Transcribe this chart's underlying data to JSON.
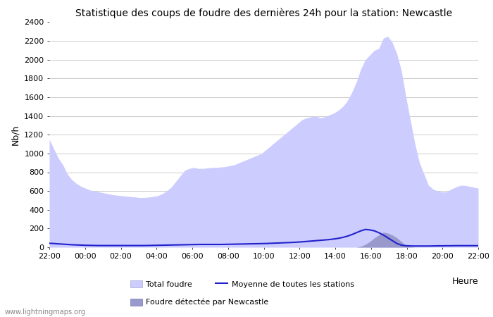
{
  "title": "Statistique des coups de foudre des dernières 24h pour la station: Newcastle",
  "xlabel": "Heure",
  "ylabel": "Nb/h",
  "ylim": [
    0,
    2400
  ],
  "yticks": [
    0,
    200,
    400,
    600,
    800,
    1000,
    1200,
    1400,
    1600,
    1800,
    2000,
    2200,
    2400
  ],
  "xtick_labels": [
    "22:00",
    "00:00",
    "02:00",
    "04:00",
    "06:00",
    "08:00",
    "10:00",
    "12:00",
    "14:00",
    "16:00",
    "18:00",
    "20:00",
    "22:00"
  ],
  "bg_color": "#ffffff",
  "grid_color": "#cccccc",
  "fill_total_color": "#ccccff",
  "fill_newcastle_color": "#9999cc",
  "mean_line_color": "#2222cc",
  "watermark": "www.lightningmaps.org",
  "total_foudre": [
    1150,
    1050,
    950,
    880,
    780,
    720,
    680,
    650,
    630,
    610,
    600,
    590,
    580,
    570,
    560,
    555,
    550,
    545,
    540,
    535,
    530,
    530,
    535,
    540,
    550,
    570,
    600,
    640,
    700,
    760,
    820,
    840,
    850,
    840,
    840,
    845,
    850,
    850,
    855,
    860,
    870,
    880,
    900,
    920,
    940,
    960,
    980,
    1000,
    1040,
    1080,
    1120,
    1160,
    1200,
    1240,
    1280,
    1320,
    1360,
    1380,
    1390,
    1400,
    1380,
    1390,
    1410,
    1430,
    1460,
    1500,
    1560,
    1650,
    1760,
    1900,
    2000,
    2050,
    2100,
    2120,
    2230,
    2250,
    2180,
    2060,
    1880,
    1600,
    1350,
    1100,
    900,
    780,
    660,
    620,
    600,
    590,
    590,
    620,
    640,
    660,
    660,
    650,
    640,
    630
  ],
  "newcastle": [
    0,
    0,
    0,
    0,
    0,
    0,
    0,
    0,
    0,
    0,
    0,
    0,
    0,
    0,
    0,
    0,
    0,
    0,
    0,
    0,
    0,
    0,
    0,
    0,
    0,
    0,
    0,
    0,
    0,
    0,
    0,
    0,
    0,
    0,
    0,
    0,
    0,
    0,
    0,
    0,
    0,
    0,
    0,
    0,
    0,
    0,
    0,
    0,
    0,
    0,
    0,
    0,
    0,
    0,
    0,
    0,
    0,
    0,
    0,
    0,
    0,
    0,
    0,
    0,
    0,
    0,
    0,
    0,
    0,
    10,
    30,
    60,
    100,
    130,
    160,
    150,
    130,
    100,
    60,
    20,
    5,
    0,
    0,
    0,
    0,
    0,
    0,
    0,
    0,
    0,
    0,
    0,
    0,
    0,
    0,
    0
  ],
  "mean_stations": [
    42,
    40,
    36,
    33,
    30,
    27,
    25,
    23,
    21,
    20,
    19,
    18,
    18,
    18,
    18,
    18,
    18,
    18,
    18,
    18,
    18,
    18,
    19,
    20,
    21,
    22,
    23,
    24,
    25,
    26,
    27,
    28,
    29,
    30,
    30,
    30,
    30,
    30,
    30,
    31,
    32,
    33,
    34,
    35,
    36,
    37,
    38,
    39,
    40,
    42,
    44,
    46,
    48,
    50,
    52,
    55,
    58,
    62,
    66,
    70,
    74,
    78,
    82,
    88,
    95,
    105,
    118,
    135,
    155,
    175,
    190,
    185,
    175,
    155,
    130,
    100,
    70,
    40,
    22,
    16,
    14,
    13,
    13,
    13,
    13,
    14,
    15,
    15,
    16,
    16,
    17,
    17,
    17,
    17,
    17,
    17
  ]
}
